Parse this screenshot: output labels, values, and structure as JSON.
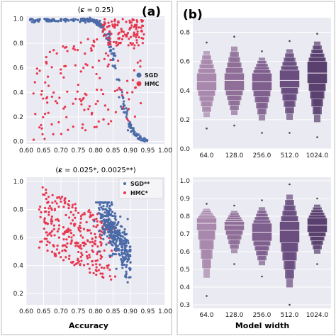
{
  "panels": {
    "left_label": "(a)",
    "right_label": "(b)",
    "left_xlabel": "Accuracy",
    "right_xlabel": "Model width"
  },
  "chart_data": [
    {
      "type": "scatter",
      "title": "(𝜺 = 0.25)",
      "xlabel": "",
      "ylabel": "",
      "xlim": [
        0.6,
        1.0
      ],
      "ylim": [
        -0.02,
        1.02
      ],
      "xticks": [
        "0.60",
        "0.65",
        "0.70",
        "0.75",
        "0.80",
        "0.85",
        "0.90",
        "0.95",
        "1.00"
      ],
      "yticks": [
        "0.0",
        "0.2",
        "0.4",
        "0.6",
        "0.8",
        "1.0"
      ],
      "grid": true,
      "legend_position": "right",
      "series": [
        {
          "name": "SGD",
          "color": "#4a6aa8",
          "description_points": [
            [
              0.61,
              1.0
            ],
            [
              0.63,
              1.0
            ],
            [
              0.66,
              1.0
            ],
            [
              0.7,
              1.0
            ],
            [
              0.74,
              0.99
            ],
            [
              0.78,
              0.97
            ],
            [
              0.8,
              0.92
            ],
            [
              0.82,
              0.85
            ],
            [
              0.84,
              0.75
            ],
            [
              0.855,
              0.6
            ],
            [
              0.87,
              0.45
            ],
            [
              0.88,
              0.3
            ],
            [
              0.89,
              0.18
            ],
            [
              0.9,
              0.1
            ],
            [
              0.92,
              0.04
            ],
            [
              0.95,
              0.01
            ]
          ]
        },
        {
          "name": "HMC",
          "color": "#e8364f",
          "description_points": [
            [
              0.62,
              0.2
            ],
            [
              0.65,
              0.4
            ],
            [
              0.7,
              0.3
            ],
            [
              0.75,
              0.5
            ],
            [
              0.8,
              0.6
            ],
            [
              0.85,
              0.8
            ],
            [
              0.88,
              0.9
            ],
            [
              0.9,
              0.95
            ],
            [
              0.92,
              0.97
            ],
            [
              0.93,
              0.98
            ]
          ]
        }
      ]
    },
    {
      "type": "scatter",
      "title": "(𝜺 = 0.025*, 0.0025**)",
      "xlabel": "Accuracy",
      "ylabel": "",
      "xlim": [
        0.6,
        1.0
      ],
      "ylim": [
        0.12,
        1.03
      ],
      "xticks": [
        "0.60",
        "0.65",
        "0.70",
        "0.75",
        "0.80",
        "0.85",
        "0.90",
        "0.95",
        "1.00"
      ],
      "yticks": [
        "0.2",
        "0.4",
        "0.6",
        "0.8",
        "1.0"
      ],
      "grid": true,
      "legend_position": "top-right",
      "series": [
        {
          "name": "SGD**",
          "color": "#4a6aa8"
        },
        {
          "name": "HMC*",
          "color": "#e8364f"
        }
      ]
    },
    {
      "type": "boxen",
      "title": "",
      "xlabel": "",
      "ylabel": "",
      "categories": [
        "64.0",
        "128.0",
        "256.0",
        "512.0",
        "1024.0"
      ],
      "ylim": [
        0.0,
        0.9
      ],
      "yticks": [
        "0.0",
        "0.2",
        "0.4",
        "0.6",
        "0.8"
      ],
      "colors": [
        "#a888ac",
        "#8f6f98",
        "#7f5f8e",
        "#6a4e80",
        "#5a406f"
      ],
      "medians": [
        0.46,
        0.47,
        0.46,
        0.47,
        0.52
      ],
      "q1": [
        0.4,
        0.4,
        0.4,
        0.42,
        0.45
      ],
      "q3": [
        0.52,
        0.52,
        0.52,
        0.54,
        0.6
      ],
      "min": [
        0.16,
        0.18,
        0.13,
        0.13,
        0.1
      ],
      "max": [
        0.72,
        0.76,
        0.66,
        0.73,
        0.78
      ]
    },
    {
      "type": "boxen",
      "title": "",
      "xlabel": "Model width",
      "ylabel": "",
      "categories": [
        "64.0",
        "128.0",
        "256.0",
        "512.0",
        "1024.0"
      ],
      "ylim": [
        0.28,
        1.02
      ],
      "yticks": [
        "0.3",
        "0.4",
        "0.5",
        "0.6",
        "0.7",
        "0.8",
        "0.9",
        "1.0"
      ],
      "colors": [
        "#a888ac",
        "#8f6f98",
        "#7f5f8e",
        "#6a4e80",
        "#5a406f"
      ],
      "medians": [
        0.76,
        0.75,
        0.71,
        0.72,
        0.75
      ],
      "q1": [
        0.72,
        0.72,
        0.66,
        0.65,
        0.71
      ],
      "q3": [
        0.79,
        0.77,
        0.76,
        0.77,
        0.79
      ],
      "min": [
        0.37,
        0.55,
        0.48,
        0.32,
        0.55
      ],
      "max": [
        0.86,
        0.85,
        0.88,
        0.97,
        0.89
      ]
    }
  ]
}
